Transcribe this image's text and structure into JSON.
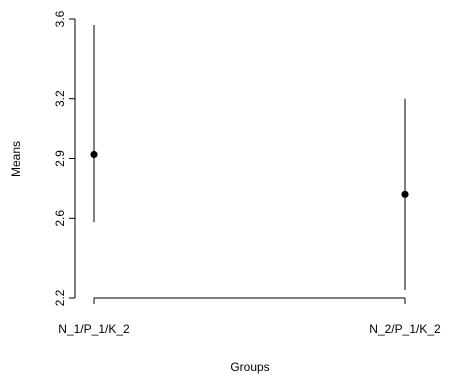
{
  "chart_data": {
    "type": "scatter",
    "subtype": "means-with-error-bars",
    "title": "",
    "xlabel": "Groups",
    "ylabel": "Means",
    "categories": [
      "N_1/P_1/K_2",
      "N_2/P_1/K_2"
    ],
    "means": [
      2.92,
      2.72
    ],
    "lower": [
      2.58,
      2.24
    ],
    "upper": [
      3.57,
      3.2
    ],
    "ylim": [
      2.2,
      3.6
    ],
    "yticks": [
      "2.2",
      "2.6",
      "2.9",
      "3.2",
      "3.6"
    ],
    "grid": false,
    "colors": {
      "points": "#000000",
      "lines": "#000000"
    }
  }
}
